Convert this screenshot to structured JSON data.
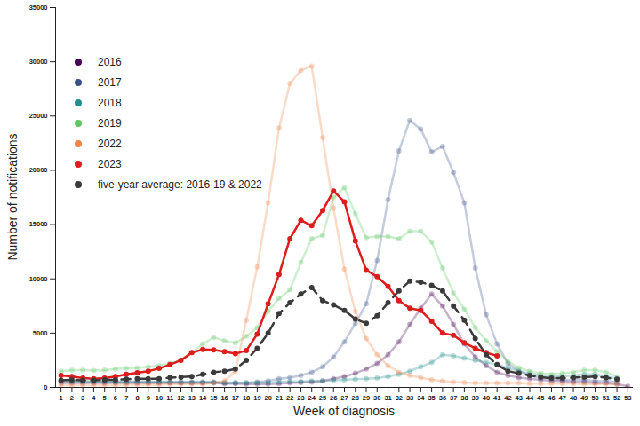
{
  "chart_data": {
    "type": "line",
    "x_label": "Week of diagnosis",
    "y_label": "Number of notifications",
    "x": [
      1,
      2,
      3,
      4,
      5,
      6,
      7,
      8,
      9,
      10,
      11,
      12,
      13,
      14,
      15,
      16,
      17,
      18,
      19,
      20,
      21,
      22,
      23,
      24,
      25,
      26,
      27,
      28,
      29,
      30,
      31,
      32,
      33,
      34,
      35,
      36,
      37,
      38,
      39,
      40,
      41,
      42,
      43,
      44,
      45,
      46,
      47,
      48,
      49,
      50,
      51,
      52,
      53
    ],
    "xlim": [
      0.5,
      53.5
    ],
    "xticks": [
      1,
      2,
      3,
      4,
      5,
      6,
      7,
      8,
      9,
      10,
      11,
      12,
      13,
      14,
      15,
      16,
      17,
      18,
      19,
      20,
      21,
      22,
      23,
      24,
      25,
      26,
      27,
      28,
      29,
      30,
      31,
      32,
      33,
      34,
      35,
      36,
      37,
      38,
      39,
      40,
      41,
      42,
      43,
      44,
      45,
      46,
      47,
      48,
      49,
      50,
      51,
      52,
      53
    ],
    "ylim": [
      0,
      35000
    ],
    "yticks": [
      0,
      5000,
      10000,
      15000,
      20000,
      25000,
      30000,
      35000
    ],
    "grid": false,
    "legend": "upper left",
    "series": [
      {
        "name": "2016",
        "color": "#440154",
        "marker": "circle",
        "line_style": "solid",
        "values": [
          400,
          400,
          400,
          400,
          400,
          400,
          400,
          400,
          400,
          400,
          400,
          400,
          400,
          400,
          400,
          350,
          350,
          300,
          300,
          300,
          350,
          400,
          450,
          500,
          600,
          800,
          1000,
          1300,
          1700,
          2200,
          3000,
          4200,
          5800,
          7300,
          8600,
          7500,
          5800,
          4000,
          2800,
          2000,
          1400,
          1100,
          900,
          800,
          700,
          600,
          600,
          500,
          500,
          400,
          400,
          300,
          100
        ]
      },
      {
        "name": "2017",
        "color": "#3b528b",
        "marker": "circle",
        "line_style": "solid",
        "values": [
          600,
          600,
          600,
          550,
          550,
          550,
          550,
          550,
          550,
          500,
          500,
          500,
          500,
          500,
          500,
          400,
          400,
          400,
          500,
          600,
          800,
          900,
          1100,
          1400,
          1900,
          2800,
          4200,
          5900,
          7700,
          11700,
          17300,
          21800,
          24600,
          23800,
          21700,
          22200,
          19800,
          17000,
          11000,
          6700,
          4000,
          2200,
          1500,
          1100,
          900,
          800,
          700,
          700,
          700,
          600,
          600,
          500,
          null
        ]
      },
      {
        "name": "2018",
        "color": "#21908c",
        "marker": "circle",
        "line_style": "solid",
        "values": [
          600,
          550,
          550,
          500,
          500,
          500,
          500,
          500,
          500,
          500,
          500,
          500,
          500,
          500,
          500,
          450,
          450,
          450,
          450,
          450,
          500,
          550,
          550,
          600,
          600,
          650,
          700,
          750,
          800,
          850,
          1000,
          1200,
          1500,
          1900,
          2300,
          3000,
          2900,
          2700,
          2500,
          2300,
          2100,
          1800,
          1500,
          1300,
          1100,
          1000,
          1000,
          1100,
          1200,
          1200,
          1000,
          800,
          null
        ]
      },
      {
        "name": "2019",
        "color": "#5dc863",
        "marker": "circle",
        "line_style": "solid",
        "values": [
          1500,
          1600,
          1600,
          1550,
          1600,
          1700,
          1750,
          1800,
          1900,
          2000,
          2200,
          2500,
          3200,
          4000,
          4600,
          4300,
          4100,
          4700,
          5500,
          7000,
          8200,
          9000,
          11500,
          13700,
          14000,
          17500,
          18400,
          16000,
          13800,
          13900,
          13900,
          13700,
          14400,
          14400,
          13400,
          11000,
          8700,
          7200,
          5500,
          4300,
          3300,
          2400,
          1800,
          1500,
          1300,
          1200,
          1300,
          1400,
          1600,
          1600,
          1400,
          1000,
          null
        ]
      },
      {
        "name": "2022",
        "color": "#f0844a",
        "marker": "circle",
        "line_style": "solid",
        "values": [
          200,
          200,
          200,
          200,
          200,
          200,
          250,
          250,
          250,
          250,
          300,
          300,
          300,
          300,
          400,
          600,
          1500,
          6200,
          11100,
          17000,
          23900,
          28000,
          29200,
          29600,
          23000,
          16500,
          10900,
          7000,
          4500,
          3000,
          2000,
          1400,
          1100,
          900,
          700,
          600,
          500,
          450,
          400,
          400,
          400,
          400,
          400,
          350,
          350,
          350,
          350,
          350,
          300,
          300,
          300,
          300,
          null
        ]
      },
      {
        "name": "2023",
        "color": "#dd1c1c",
        "marker": "circle",
        "line_style": "solid",
        "values": [
          1100,
          1000,
          850,
          800,
          850,
          1000,
          1200,
          1350,
          1500,
          1750,
          2100,
          2500,
          3200,
          3500,
          3450,
          3300,
          3100,
          3400,
          4900,
          7700,
          10400,
          13700,
          15400,
          14900,
          16300,
          18100,
          17100,
          13500,
          10800,
          10200,
          9300,
          8000,
          7300,
          7100,
          6100,
          5000,
          4800,
          4100,
          3600,
          3200,
          2900,
          null,
          null,
          null,
          null,
          null,
          null,
          null,
          null,
          null,
          null,
          null,
          null
        ]
      },
      {
        "name": "five-year average: 2016-19 & 2022",
        "color": "#3a3a3a",
        "marker": "circle",
        "line_style": "dashed",
        "values": [
          650,
          700,
          650,
          650,
          700,
          700,
          750,
          800,
          800,
          800,
          900,
          950,
          1000,
          1200,
          1400,
          1500,
          1700,
          2500,
          3600,
          5000,
          6800,
          7800,
          8600,
          9200,
          8000,
          7600,
          7100,
          6300,
          5900,
          6600,
          7800,
          8900,
          9800,
          9700,
          9400,
          8900,
          7500,
          6200,
          4500,
          3000,
          2100,
          1500,
          1300,
          1100,
          950,
          850,
          850,
          900,
          950,
          1000,
          900,
          750,
          null
        ]
      }
    ]
  }
}
